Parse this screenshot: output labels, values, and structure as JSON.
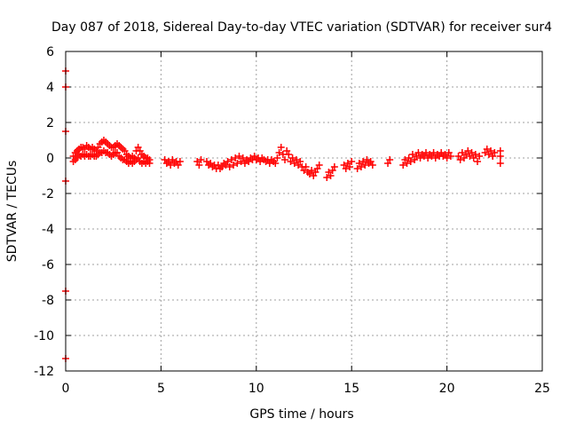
{
  "chart_data": {
    "type": "scatter",
    "title": "Day 087 of 2018, Sidereal Day-to-day VTEC variation (SDTVAR) for receiver sur4",
    "xlabel": "GPS time / hours",
    "ylabel": "SDTVAR / TECUs",
    "xlim": [
      0,
      25
    ],
    "ylim": [
      -12,
      6
    ],
    "x_ticks": [
      "0",
      "5",
      "10",
      "15",
      "20",
      "25"
    ],
    "y_ticks": [
      "-12",
      "-10",
      "-8",
      "-6",
      "-4",
      "-2",
      "0",
      "2",
      "4",
      "6"
    ],
    "grid": true,
    "marker": "plus",
    "color": "#ff0000",
    "series": [
      {
        "name": "sur4",
        "points": [
          [
            0.0,
            4.9
          ],
          [
            0.0,
            4.0
          ],
          [
            0.0,
            1.5
          ],
          [
            0.0,
            -1.3
          ],
          [
            0.0,
            -7.5
          ],
          [
            0.0,
            -11.3
          ],
          [
            0.4,
            0.1
          ],
          [
            0.4,
            -0.2
          ],
          [
            0.5,
            0.3
          ],
          [
            0.5,
            -0.1
          ],
          [
            0.6,
            0.4
          ],
          [
            0.6,
            0.0
          ],
          [
            0.7,
            0.5
          ],
          [
            0.7,
            0.2
          ],
          [
            0.8,
            0.6
          ],
          [
            0.8,
            0.1
          ],
          [
            0.9,
            0.6
          ],
          [
            0.9,
            0.2
          ],
          [
            1.0,
            0.5
          ],
          [
            1.0,
            0.1
          ],
          [
            1.1,
            0.7
          ],
          [
            1.1,
            0.2
          ],
          [
            1.2,
            0.6
          ],
          [
            1.2,
            0.1
          ],
          [
            1.3,
            0.5
          ],
          [
            1.3,
            0.1
          ],
          [
            1.4,
            0.6
          ],
          [
            1.4,
            0.2
          ],
          [
            1.5,
            0.5
          ],
          [
            1.5,
            0.1
          ],
          [
            1.6,
            0.4
          ],
          [
            1.6,
            0.1
          ],
          [
            1.7,
            0.6
          ],
          [
            1.7,
            0.2
          ],
          [
            1.8,
            0.8
          ],
          [
            1.8,
            0.3
          ],
          [
            1.9,
            0.9
          ],
          [
            1.9,
            0.3
          ],
          [
            2.0,
            1.0
          ],
          [
            2.0,
            0.4
          ],
          [
            2.1,
            0.9
          ],
          [
            2.1,
            0.3
          ],
          [
            2.2,
            0.8
          ],
          [
            2.2,
            0.3
          ],
          [
            2.3,
            0.7
          ],
          [
            2.3,
            0.2
          ],
          [
            2.4,
            0.6
          ],
          [
            2.4,
            0.1
          ],
          [
            2.5,
            0.6
          ],
          [
            2.5,
            0.2
          ],
          [
            2.6,
            0.7
          ],
          [
            2.6,
            0.3
          ],
          [
            2.7,
            0.8
          ],
          [
            2.7,
            0.3
          ],
          [
            2.8,
            0.7
          ],
          [
            2.8,
            0.1
          ],
          [
            2.9,
            0.6
          ],
          [
            2.9,
            0.0
          ],
          [
            3.0,
            0.5
          ],
          [
            3.0,
            -0.1
          ],
          [
            3.1,
            0.4
          ],
          [
            3.1,
            -0.1
          ],
          [
            3.2,
            0.2
          ],
          [
            3.2,
            -0.2
          ],
          [
            3.3,
            0.1
          ],
          [
            3.3,
            -0.3
          ],
          [
            3.4,
            0.0
          ],
          [
            3.4,
            -0.2
          ],
          [
            3.5,
            0.1
          ],
          [
            3.5,
            -0.3
          ],
          [
            3.6,
            0.0
          ],
          [
            3.6,
            -0.2
          ],
          [
            3.7,
            0.4
          ],
          [
            3.7,
            -0.1
          ],
          [
            3.8,
            0.6
          ],
          [
            3.8,
            0.0
          ],
          [
            3.9,
            0.4
          ],
          [
            3.9,
            -0.2
          ],
          [
            4.0,
            0.2
          ],
          [
            4.0,
            -0.3
          ],
          [
            4.1,
            0.1
          ],
          [
            4.1,
            -0.2
          ],
          [
            4.2,
            0.0
          ],
          [
            4.2,
            -0.3
          ],
          [
            4.3,
            0.0
          ],
          [
            4.3,
            -0.2
          ],
          [
            4.4,
            -0.1
          ],
          [
            4.4,
            -0.3
          ],
          [
            5.2,
            -0.1
          ],
          [
            5.3,
            -0.3
          ],
          [
            5.4,
            -0.2
          ],
          [
            5.5,
            -0.4
          ],
          [
            5.6,
            -0.1
          ],
          [
            5.7,
            -0.3
          ],
          [
            5.8,
            -0.2
          ],
          [
            5.9,
            -0.4
          ],
          [
            6.0,
            -0.2
          ],
          [
            6.9,
            -0.2
          ],
          [
            7.0,
            -0.4
          ],
          [
            7.1,
            -0.1
          ],
          [
            7.4,
            -0.2
          ],
          [
            7.5,
            -0.4
          ],
          [
            7.6,
            -0.3
          ],
          [
            7.7,
            -0.5
          ],
          [
            7.8,
            -0.4
          ],
          [
            7.9,
            -0.6
          ],
          [
            8.0,
            -0.4
          ],
          [
            8.1,
            -0.6
          ],
          [
            8.2,
            -0.5
          ],
          [
            8.3,
            -0.3
          ],
          [
            8.4,
            -0.4
          ],
          [
            8.5,
            -0.2
          ],
          [
            8.6,
            -0.5
          ],
          [
            8.7,
            -0.1
          ],
          [
            8.8,
            -0.4
          ],
          [
            8.9,
            0.0
          ],
          [
            9.0,
            -0.3
          ],
          [
            9.1,
            0.1
          ],
          [
            9.2,
            -0.2
          ],
          [
            9.3,
            0.0
          ],
          [
            9.4,
            -0.3
          ],
          [
            9.5,
            -0.1
          ],
          [
            9.6,
            -0.2
          ],
          [
            9.7,
            0.0
          ],
          [
            9.8,
            -0.1
          ],
          [
            9.9,
            0.1
          ],
          [
            10.0,
            -0.1
          ],
          [
            10.1,
            0.0
          ],
          [
            10.2,
            -0.2
          ],
          [
            10.3,
            0.0
          ],
          [
            10.4,
            -0.1
          ],
          [
            10.5,
            -0.2
          ],
          [
            10.6,
            -0.1
          ],
          [
            10.7,
            -0.3
          ],
          [
            10.8,
            -0.1
          ],
          [
            10.9,
            -0.2
          ],
          [
            11.0,
            -0.3
          ],
          [
            11.1,
            0.0
          ],
          [
            11.2,
            0.3
          ],
          [
            11.3,
            0.6
          ],
          [
            11.4,
            0.2
          ],
          [
            11.5,
            -0.1
          ],
          [
            11.6,
            0.4
          ],
          [
            11.7,
            0.2
          ],
          [
            11.8,
            -0.2
          ],
          [
            11.9,
            0.0
          ],
          [
            12.0,
            -0.3
          ],
          [
            12.1,
            -0.1
          ],
          [
            12.2,
            -0.4
          ],
          [
            12.3,
            -0.2
          ],
          [
            12.4,
            -0.5
          ],
          [
            12.5,
            -0.7
          ],
          [
            12.6,
            -0.5
          ],
          [
            12.7,
            -0.8
          ],
          [
            12.8,
            -0.9
          ],
          [
            12.9,
            -0.7
          ],
          [
            13.0,
            -1.0
          ],
          [
            13.1,
            -0.8
          ],
          [
            13.2,
            -0.6
          ],
          [
            13.3,
            -0.4
          ],
          [
            13.7,
            -1.1
          ],
          [
            13.8,
            -0.8
          ],
          [
            13.9,
            -1.0
          ],
          [
            14.0,
            -0.7
          ],
          [
            14.1,
            -0.5
          ],
          [
            14.6,
            -0.4
          ],
          [
            14.7,
            -0.6
          ],
          [
            14.8,
            -0.3
          ],
          [
            14.9,
            -0.5
          ],
          [
            15.0,
            -0.2
          ],
          [
            15.3,
            -0.6
          ],
          [
            15.4,
            -0.3
          ],
          [
            15.5,
            -0.5
          ],
          [
            15.6,
            -0.2
          ],
          [
            15.7,
            -0.4
          ],
          [
            15.8,
            -0.1
          ],
          [
            15.9,
            -0.3
          ],
          [
            16.0,
            -0.2
          ],
          [
            16.1,
            -0.4
          ],
          [
            16.9,
            -0.3
          ],
          [
            17.0,
            -0.1
          ],
          [
            17.7,
            -0.4
          ],
          [
            17.8,
            -0.1
          ],
          [
            17.9,
            -0.3
          ],
          [
            18.0,
            0.0
          ],
          [
            18.1,
            -0.2
          ],
          [
            18.2,
            0.2
          ],
          [
            18.3,
            -0.1
          ],
          [
            18.4,
            0.1
          ],
          [
            18.5,
            0.3
          ],
          [
            18.6,
            0.0
          ],
          [
            18.7,
            0.2
          ],
          [
            18.8,
            0.1
          ],
          [
            18.9,
            0.3
          ],
          [
            19.0,
            0.0
          ],
          [
            19.1,
            0.2
          ],
          [
            19.2,
            0.1
          ],
          [
            19.3,
            0.3
          ],
          [
            19.4,
            0.0
          ],
          [
            19.5,
            0.2
          ],
          [
            19.6,
            0.1
          ],
          [
            19.7,
            0.3
          ],
          [
            19.8,
            0.1
          ],
          [
            19.9,
            0.2
          ],
          [
            20.0,
            0.0
          ],
          [
            20.1,
            0.3
          ],
          [
            20.2,
            0.1
          ],
          [
            20.6,
            0.1
          ],
          [
            20.7,
            -0.1
          ],
          [
            20.8,
            0.3
          ],
          [
            20.9,
            0.0
          ],
          [
            21.0,
            0.2
          ],
          [
            21.1,
            0.4
          ],
          [
            21.2,
            0.1
          ],
          [
            21.3,
            0.3
          ],
          [
            21.4,
            0.0
          ],
          [
            21.5,
            0.2
          ],
          [
            21.6,
            -0.2
          ],
          [
            21.7,
            0.1
          ],
          [
            22.0,
            0.3
          ],
          [
            22.1,
            0.5
          ],
          [
            22.2,
            0.2
          ],
          [
            22.3,
            0.4
          ],
          [
            22.4,
            0.1
          ],
          [
            22.5,
            0.3
          ],
          [
            22.8,
            0.4
          ],
          [
            22.8,
            0.1
          ],
          [
            22.8,
            -0.3
          ]
        ]
      }
    ]
  }
}
